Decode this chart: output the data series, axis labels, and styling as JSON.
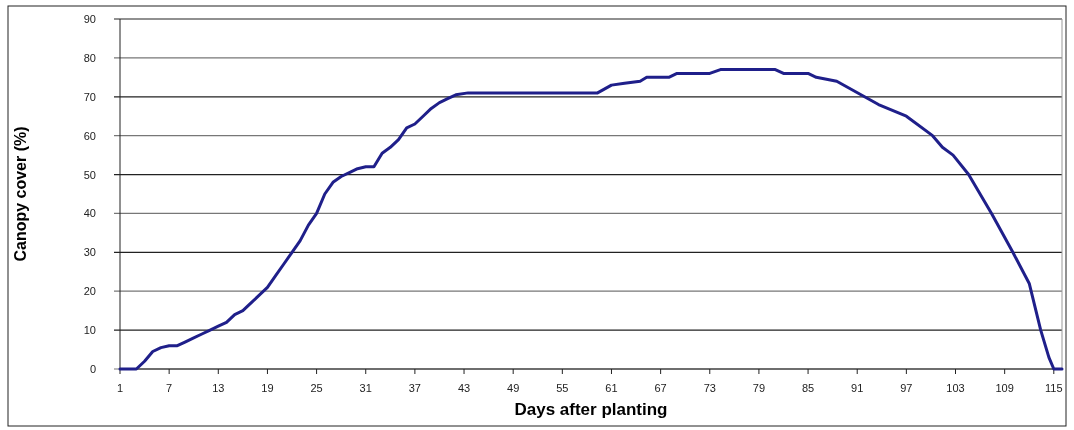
{
  "chart_data": {
    "type": "line",
    "xlabel": "Days after planting",
    "ylabel": "Canopy cover (%)",
    "xlim": [
      1,
      116
    ],
    "xticks": [
      1,
      7,
      13,
      19,
      25,
      31,
      37,
      43,
      49,
      55,
      61,
      67,
      73,
      79,
      85,
      91,
      97,
      103,
      109,
      115
    ],
    "ylim": [
      0,
      90
    ],
    "yticks": [
      0,
      10,
      20,
      30,
      40,
      50,
      60,
      70,
      80,
      90
    ],
    "grid": "y",
    "marker": "none",
    "line_style": "solid",
    "series": [
      {
        "color": "#1f1f8a",
        "x": [
          1,
          3,
          4,
          5,
          6,
          7,
          8,
          9,
          10,
          11,
          12,
          13,
          14,
          15,
          16,
          17,
          18,
          19,
          20,
          21,
          22,
          23,
          24,
          25,
          26,
          27,
          28,
          29,
          30,
          31,
          32,
          33,
          34,
          35,
          36,
          37,
          38,
          39,
          40,
          41,
          42,
          43.5,
          58,
          59.3,
          61,
          62.6,
          64.5,
          65.3,
          68,
          69,
          73,
          74.3,
          81,
          82,
          84,
          85,
          86,
          88.5,
          91.9,
          93.6,
          97,
          100.2,
          101.4,
          102.7,
          104.6,
          107.4,
          110,
          112,
          113.4,
          114.4,
          115,
          116
        ],
        "values": [
          0,
          0,
          2,
          4.5,
          5.5,
          6,
          6,
          7,
          8,
          9,
          10,
          11,
          12,
          14,
          15,
          17,
          19,
          21,
          24,
          27,
          30,
          33,
          37,
          40,
          45,
          48,
          49.5,
          50.5,
          51.5,
          52,
          52,
          55.5,
          57,
          59,
          62,
          63,
          65,
          67,
          68.5,
          69.5,
          70.5,
          71,
          71,
          71,
          73,
          73.5,
          74,
          75,
          75,
          76,
          76,
          77,
          77,
          76,
          76,
          76,
          75,
          74,
          70,
          68,
          65,
          60,
          57,
          55,
          50,
          40,
          30,
          22,
          10,
          3,
          0,
          0
        ]
      }
    ]
  }
}
